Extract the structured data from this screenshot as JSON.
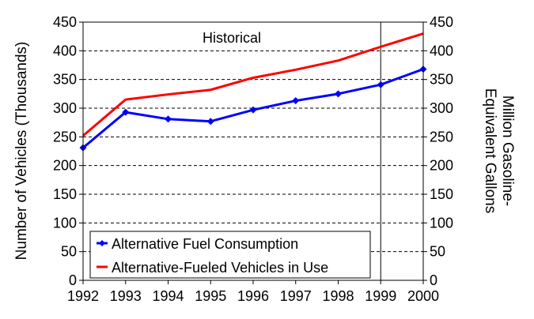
{
  "chart_data": {
    "type": "line",
    "title": "",
    "x": [
      "1992",
      "1993",
      "1994",
      "1995",
      "1996",
      "1997",
      "1998",
      "1999",
      "2000"
    ],
    "ylabel_left": "Number of Vehicles (Thousands)",
    "ylabel_right_lines": [
      "Million Gasoline-",
      "Equivalent Gallons"
    ],
    "ylim": [
      0,
      450
    ],
    "yticks": [
      0,
      50,
      100,
      150,
      200,
      250,
      300,
      350,
      400,
      450
    ],
    "grid": "horizontal dashed",
    "annotation": "Historical",
    "annotation_divider_x": "1999",
    "legend_position": "bottom-left",
    "series": [
      {
        "name": "Alternative Fuel Consumption",
        "color": "#0000ff",
        "marker": "diamond",
        "values": [
          231,
          293,
          281,
          277,
          297,
          313,
          325,
          341,
          368
        ]
      },
      {
        "name": "Alternative-Fueled Vehicles in Use",
        "color": "#ff0000",
        "marker": "none",
        "values": [
          252,
          315,
          324,
          332,
          353,
          367,
          383,
          407,
          430
        ]
      }
    ]
  }
}
